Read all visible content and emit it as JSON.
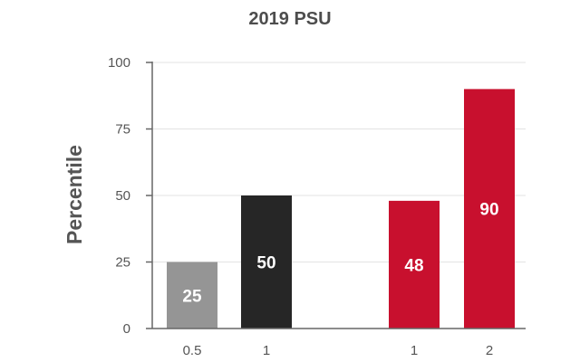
{
  "chart_data": {
    "type": "bar",
    "title": "2019 PSU",
    "xlabel": "",
    "ylabel": "Percentile",
    "ylim": [
      0,
      100
    ],
    "yticks": [
      0,
      25,
      50,
      75,
      100
    ],
    "grid": true,
    "bars": [
      {
        "category": "0.5",
        "value": 25,
        "label": "25",
        "color": "#959595"
      },
      {
        "category": "1",
        "value": 50,
        "label": "50",
        "color": "#262626"
      },
      {
        "category": "1",
        "value": 48,
        "label": "48",
        "color": "#c8102e"
      },
      {
        "category": "2",
        "value": 90,
        "label": "90",
        "color": "#c8102e"
      }
    ]
  }
}
